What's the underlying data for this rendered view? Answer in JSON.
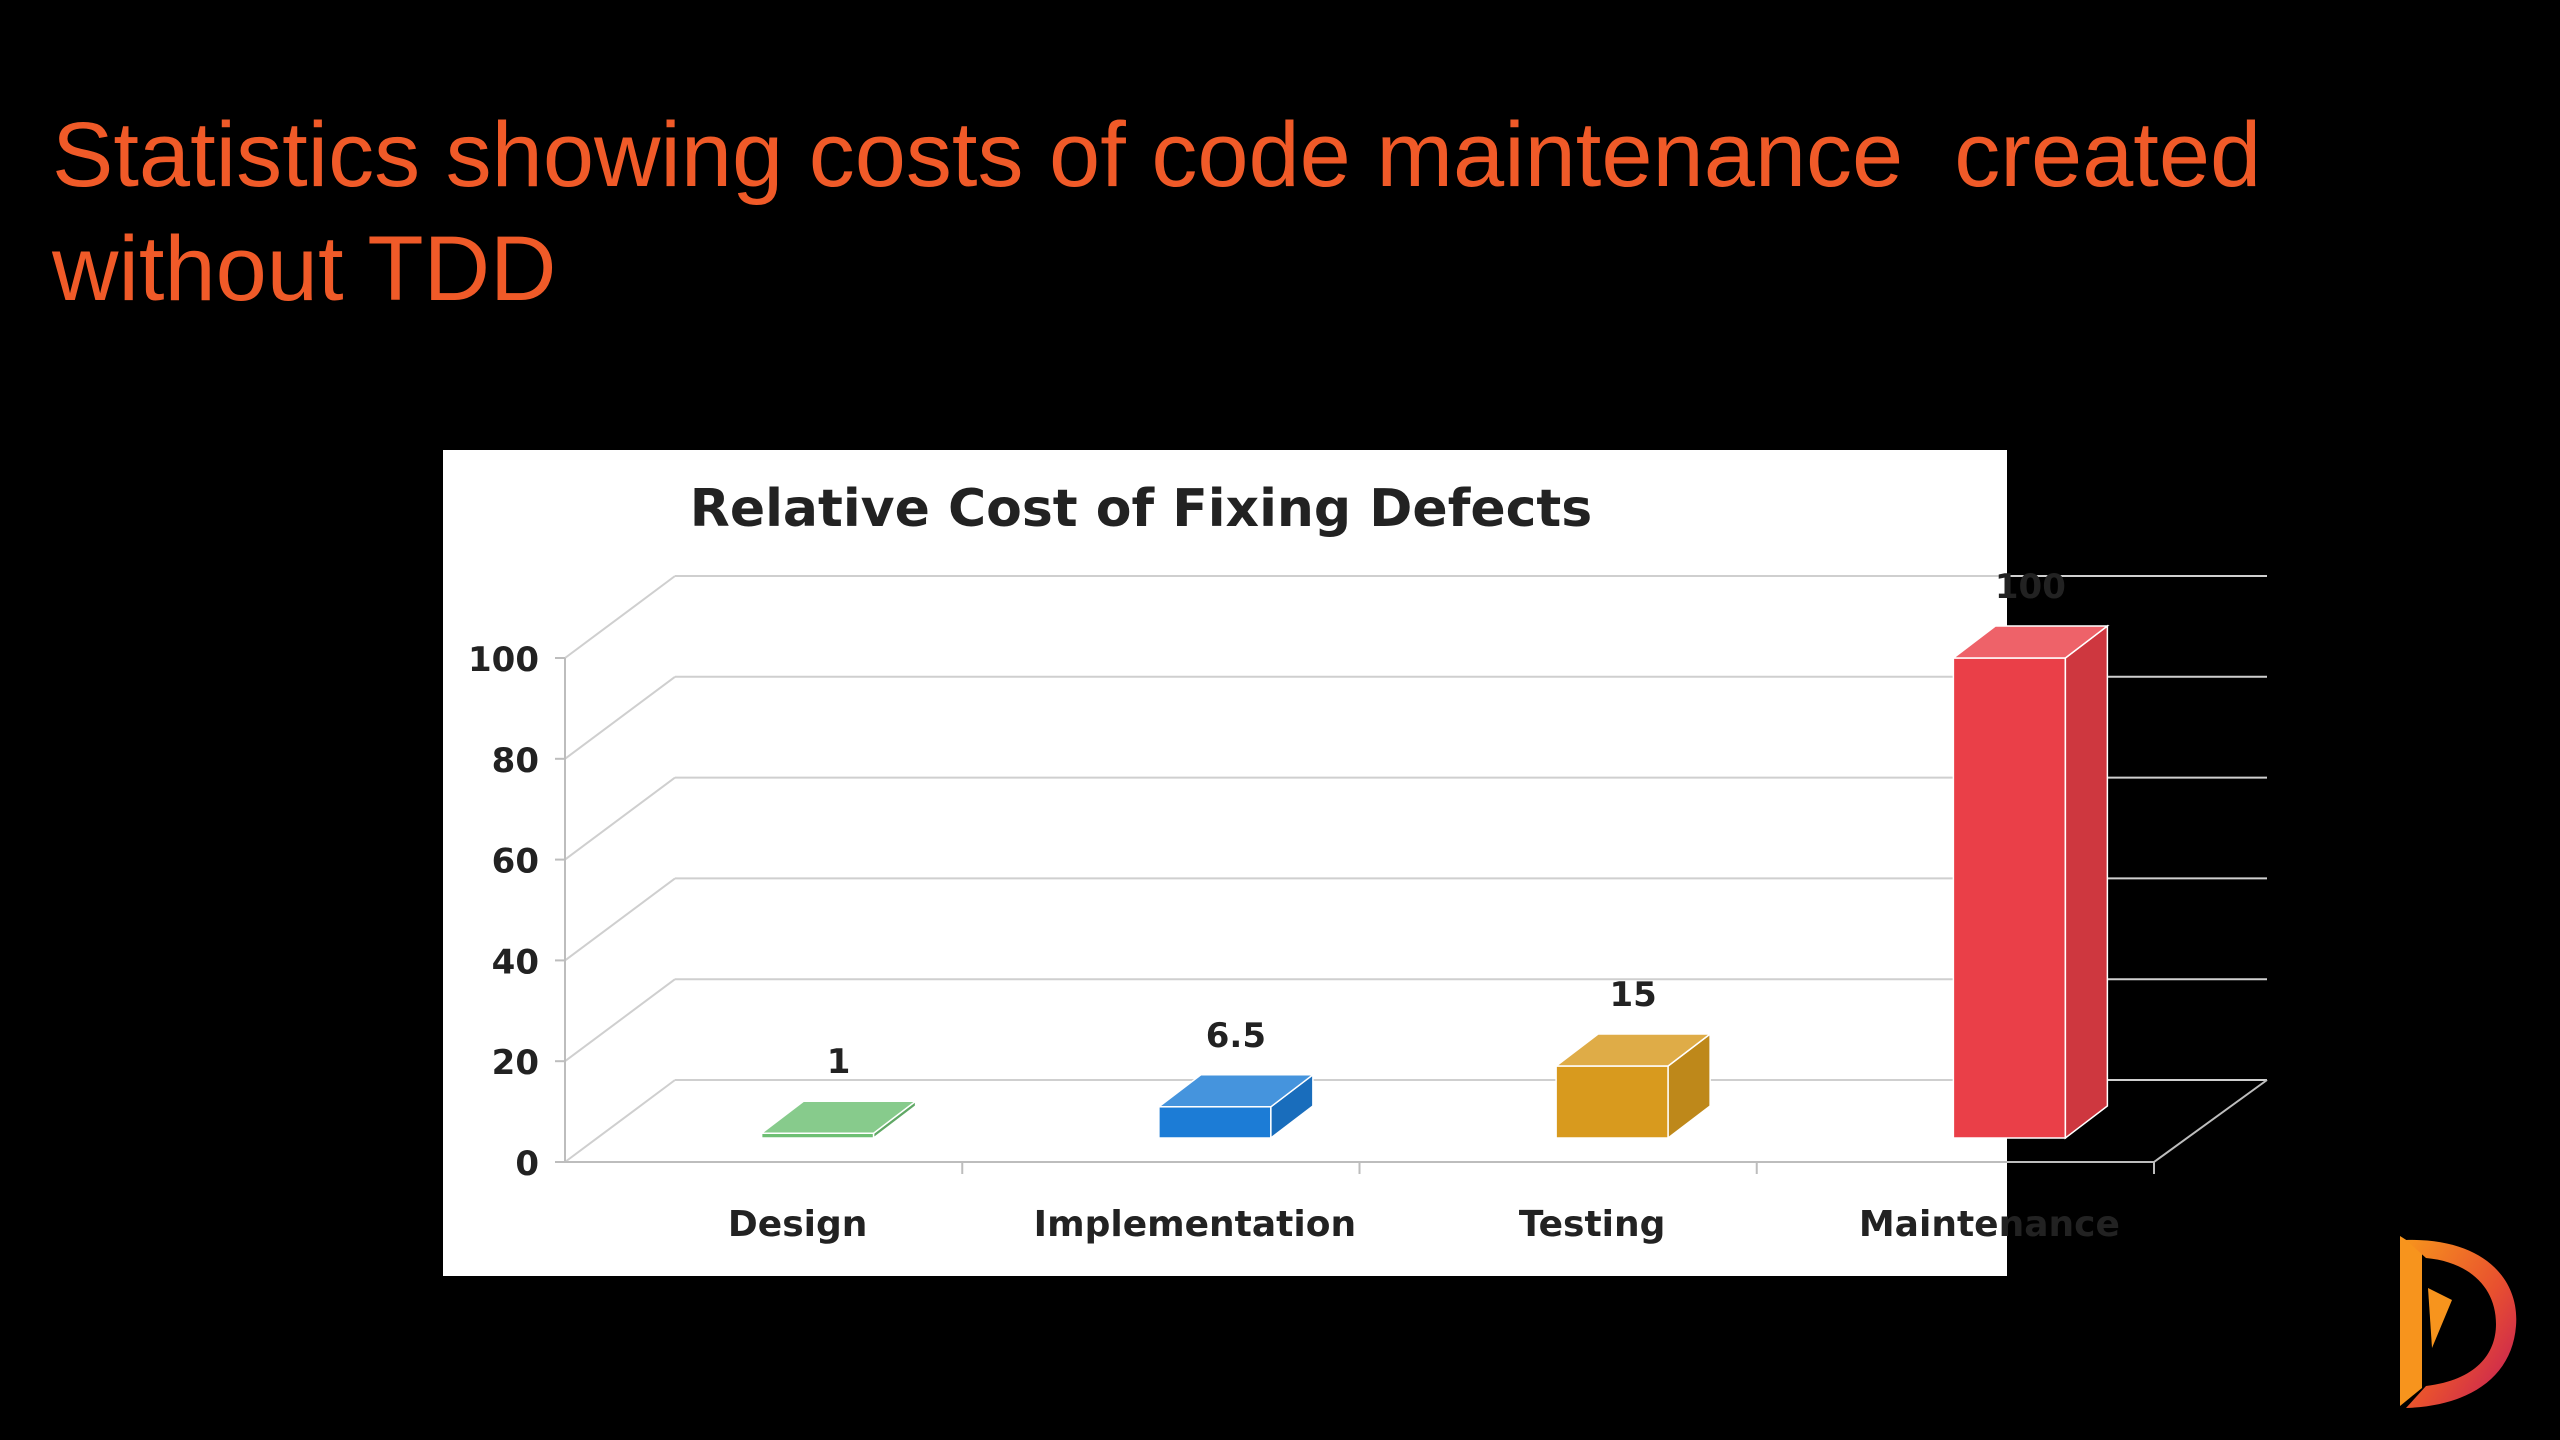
{
  "slide": {
    "title": "Statistics showing costs of code maintenance  created without TDD"
  },
  "chart_data": {
    "type": "bar",
    "title": "Relative Cost of Fixing Defects",
    "xlabel": "",
    "ylabel": "",
    "categories": [
      "Design",
      "Implementation",
      "Testing",
      "Maintenance"
    ],
    "values": [
      1,
      6.5,
      15,
      100
    ],
    "data_labels": [
      "1",
      "6.5",
      "15",
      "100"
    ],
    "yticks": [
      "0",
      "20",
      "40",
      "60",
      "80",
      "100"
    ],
    "ytick_values": [
      0,
      20,
      40,
      60,
      80,
      100
    ],
    "ylim": [
      0,
      100
    ],
    "grid": true,
    "style": "3d",
    "colors": [
      "#6dbf73",
      "#1c7cd6",
      "#d89a1e",
      "#ea3f48"
    ]
  },
  "logo": {
    "icon": "d-logo-icon",
    "colors": [
      "#f7941d",
      "#c2185b"
    ]
  }
}
